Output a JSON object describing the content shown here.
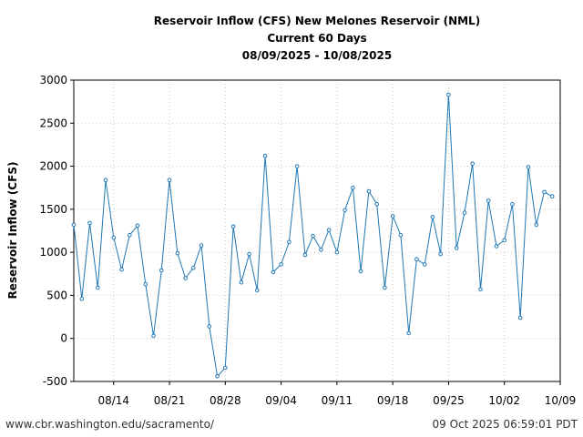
{
  "chart_data": {
    "type": "line",
    "title": "Reservoir Inflow (CFS) New Melones Reservoir (NML)",
    "subtitle": "Current 60 Days",
    "date_range": "08/09/2025 - 10/08/2025",
    "xlabel": "",
    "ylabel": "Reservoir Inflow (CFS)",
    "ylim": [
      -500,
      3000
    ],
    "yticks": [
      -500,
      0,
      500,
      1000,
      1500,
      2000,
      2500,
      3000
    ],
    "xlim_days": [
      0,
      61
    ],
    "xticks": [
      {
        "day": 5,
        "label": "08/14"
      },
      {
        "day": 12,
        "label": "08/21"
      },
      {
        "day": 19,
        "label": "08/28"
      },
      {
        "day": 26,
        "label": "09/04"
      },
      {
        "day": 33,
        "label": "09/11"
      },
      {
        "day": 40,
        "label": "09/18"
      },
      {
        "day": 47,
        "label": "09/25"
      },
      {
        "day": 54,
        "label": "10/02"
      },
      {
        "day": 61,
        "label": "10/09"
      }
    ],
    "grid": true,
    "line_color": "#1f77b4",
    "series": [
      {
        "name": "Reservoir Inflow",
        "values": [
          1320,
          460,
          1340,
          590,
          1840,
          1170,
          800,
          1200,
          1310,
          630,
          30,
          790,
          1840,
          990,
          700,
          820,
          1080,
          140,
          -440,
          -340,
          1300,
          650,
          980,
          560,
          2120,
          770,
          860,
          1120,
          2000,
          970,
          1190,
          1030,
          1260,
          1000,
          1490,
          1750,
          780,
          1710,
          1560,
          590,
          1420,
          1200,
          60,
          920,
          860,
          1410,
          980,
          2830,
          1050,
          1460,
          2030,
          570,
          1600,
          1070,
          1140,
          1560,
          240,
          1990,
          1320,
          1700,
          1650
        ]
      }
    ]
  },
  "footer": {
    "source_url": "www.cbr.washington.edu/sacramento/",
    "timestamp": "09 Oct 2025 06:59:01 PDT"
  }
}
